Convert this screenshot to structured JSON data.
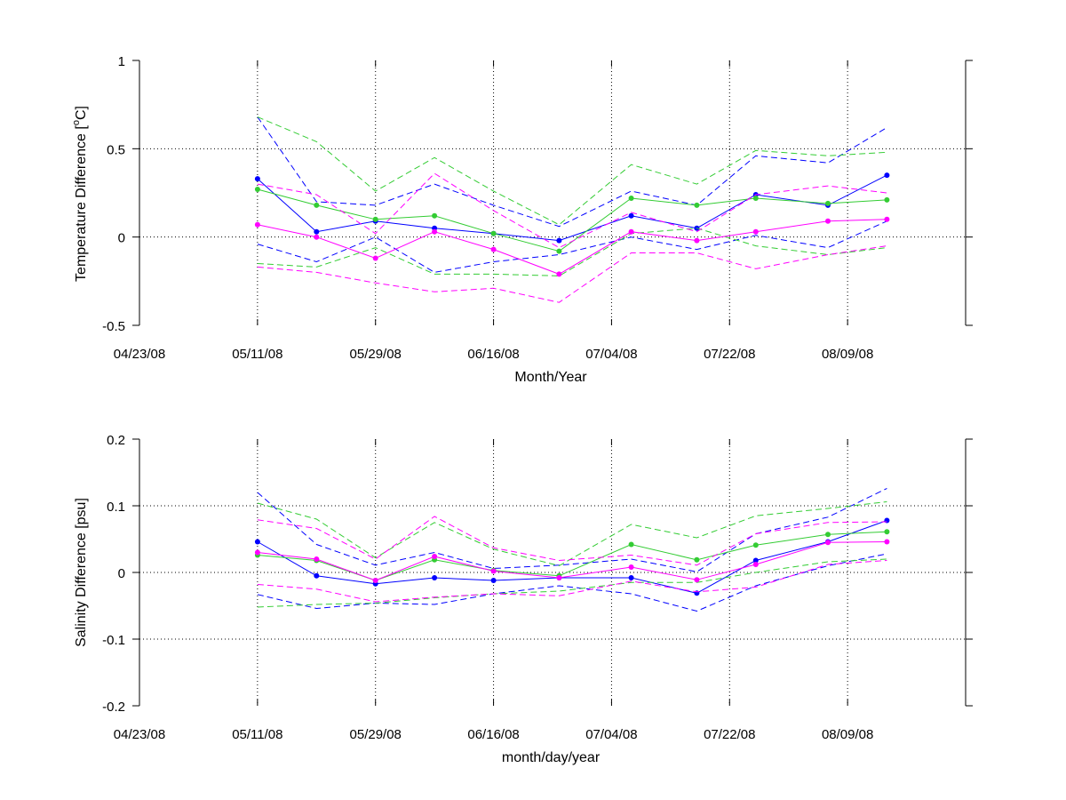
{
  "chart_data": [
    {
      "type": "line",
      "title": "",
      "xlabel": "Month/Year",
      "ylabel": "Temperature Difference [°C]",
      "ylabel_prefix": "Temperature Difference [",
      "ylabel_sup": "o",
      "ylabel_suffix": "C]",
      "xlim": [
        "2008-04-23",
        "2008-08-27"
      ],
      "ylim": [
        -0.5,
        1
      ],
      "grid": true,
      "x_ticks": [
        "04/23/08",
        "05/11/08",
        "05/29/08",
        "06/16/08",
        "07/04/08",
        "07/22/08",
        "08/09/08"
      ],
      "y_ticks": [
        "-0.5",
        "0",
        "0.5",
        "1"
      ],
      "y_tick_values": [
        -0.5,
        0,
        0.5,
        1
      ],
      "x": [
        "2008-05-11",
        "2008-05-20",
        "2008-05-29",
        "2008-06-07",
        "2008-06-16",
        "2008-06-26",
        "2008-07-07",
        "2008-07-17",
        "2008-07-26",
        "2008-08-06",
        "2008-08-15"
      ],
      "series": [
        {
          "color": "#0000ff",
          "style": "solid",
          "markers": true,
          "values": [
            0.33,
            0.03,
            0.09,
            0.05,
            0.02,
            -0.02,
            0.12,
            0.05,
            0.24,
            0.18,
            0.35
          ]
        },
        {
          "color": "#0000ff",
          "style": "dashed",
          "markers": false,
          "values": [
            0.68,
            0.2,
            0.18,
            0.3,
            0.18,
            0.06,
            0.26,
            0.18,
            0.46,
            0.42,
            0.62
          ]
        },
        {
          "color": "#0000ff",
          "style": "dashed",
          "markers": false,
          "values": [
            -0.04,
            -0.14,
            0.0,
            -0.2,
            -0.14,
            -0.1,
            0.0,
            -0.07,
            0.01,
            -0.06,
            0.09
          ]
        },
        {
          "color": "#33cc33",
          "style": "solid",
          "markers": true,
          "values": [
            0.27,
            0.18,
            0.1,
            0.12,
            0.02,
            -0.08,
            0.22,
            0.18,
            0.22,
            0.19,
            0.21
          ]
        },
        {
          "color": "#33cc33",
          "style": "dashed",
          "markers": false,
          "values": [
            0.68,
            0.54,
            0.26,
            0.45,
            0.26,
            0.07,
            0.41,
            0.3,
            0.49,
            0.46,
            0.48
          ]
        },
        {
          "color": "#33cc33",
          "style": "dashed",
          "markers": false,
          "values": [
            -0.15,
            -0.17,
            -0.06,
            -0.21,
            -0.21,
            -0.22,
            0.02,
            0.05,
            -0.05,
            -0.1,
            -0.06
          ]
        },
        {
          "color": "#ff00ff",
          "style": "solid",
          "markers": true,
          "values": [
            0.07,
            0.0,
            -0.12,
            0.03,
            -0.07,
            -0.21,
            0.03,
            -0.02,
            0.03,
            0.09,
            0.1
          ]
        },
        {
          "color": "#ff00ff",
          "style": "dashed",
          "markers": false,
          "values": [
            0.3,
            0.24,
            0.02,
            0.36,
            0.15,
            -0.06,
            0.14,
            0.03,
            0.24,
            0.29,
            0.25
          ]
        },
        {
          "color": "#ff00ff",
          "style": "dashed",
          "markers": false,
          "values": [
            -0.17,
            -0.2,
            -0.26,
            -0.31,
            -0.29,
            -0.37,
            -0.09,
            -0.09,
            -0.18,
            -0.1,
            -0.05
          ]
        }
      ]
    },
    {
      "type": "line",
      "title": "",
      "xlabel": "month/day/year",
      "ylabel": "Salinity Difference [psu]",
      "xlim": [
        "2008-04-23",
        "2008-08-27"
      ],
      "ylim": [
        -0.2,
        0.2
      ],
      "grid": true,
      "x_ticks": [
        "04/23/08",
        "05/11/08",
        "05/29/08",
        "06/16/08",
        "07/04/08",
        "07/22/08",
        "08/09/08"
      ],
      "y_ticks": [
        "-0.2",
        "-0.1",
        "0",
        "0.1",
        "0.2"
      ],
      "y_tick_values": [
        -0.2,
        -0.1,
        0,
        0.1,
        0.2
      ],
      "x": [
        "2008-05-11",
        "2008-05-20",
        "2008-05-29",
        "2008-06-07",
        "2008-06-16",
        "2008-06-26",
        "2008-07-07",
        "2008-07-17",
        "2008-07-26",
        "2008-08-06",
        "2008-08-15"
      ],
      "series": [
        {
          "color": "#0000ff",
          "style": "solid",
          "markers": true,
          "values": [
            0.046,
            -0.005,
            -0.017,
            -0.008,
            -0.012,
            -0.008,
            -0.008,
            -0.031,
            0.018,
            0.046,
            0.078
          ]
        },
        {
          "color": "#0000ff",
          "style": "dashed",
          "markers": false,
          "values": [
            0.12,
            0.042,
            0.011,
            0.03,
            0.006,
            0.011,
            0.02,
            0.001,
            0.058,
            0.083,
            0.126
          ]
        },
        {
          "color": "#0000ff",
          "style": "dashed",
          "markers": false,
          "values": [
            -0.033,
            -0.054,
            -0.046,
            -0.048,
            -0.032,
            -0.02,
            -0.032,
            -0.058,
            -0.02,
            0.01,
            0.028
          ]
        },
        {
          "color": "#33cc33",
          "style": "solid",
          "markers": true,
          "values": [
            0.026,
            0.018,
            -0.012,
            0.019,
            0.003,
            -0.005,
            0.042,
            0.019,
            0.041,
            0.057,
            0.061
          ]
        },
        {
          "color": "#33cc33",
          "style": "dashed",
          "markers": false,
          "values": [
            0.104,
            0.08,
            0.022,
            0.075,
            0.035,
            0.01,
            0.072,
            0.052,
            0.085,
            0.096,
            0.106
          ]
        },
        {
          "color": "#33cc33",
          "style": "dashed",
          "markers": false,
          "values": [
            -0.052,
            -0.048,
            -0.046,
            -0.038,
            -0.032,
            -0.028,
            -0.015,
            -0.015,
            0.0,
            0.016,
            0.02
          ]
        },
        {
          "color": "#ff00ff",
          "style": "solid",
          "markers": true,
          "values": [
            0.03,
            0.02,
            -0.012,
            0.024,
            0.002,
            -0.008,
            0.008,
            -0.011,
            0.012,
            0.045,
            0.046
          ]
        },
        {
          "color": "#ff00ff",
          "style": "dashed",
          "markers": false,
          "values": [
            0.079,
            0.066,
            0.02,
            0.084,
            0.037,
            0.018,
            0.026,
            0.011,
            0.058,
            0.075,
            0.076
          ]
        },
        {
          "color": "#ff00ff",
          "style": "dashed",
          "markers": false,
          "values": [
            -0.018,
            -0.025,
            -0.044,
            -0.037,
            -0.032,
            -0.035,
            -0.013,
            -0.029,
            -0.022,
            0.012,
            0.018
          ]
        }
      ]
    }
  ]
}
